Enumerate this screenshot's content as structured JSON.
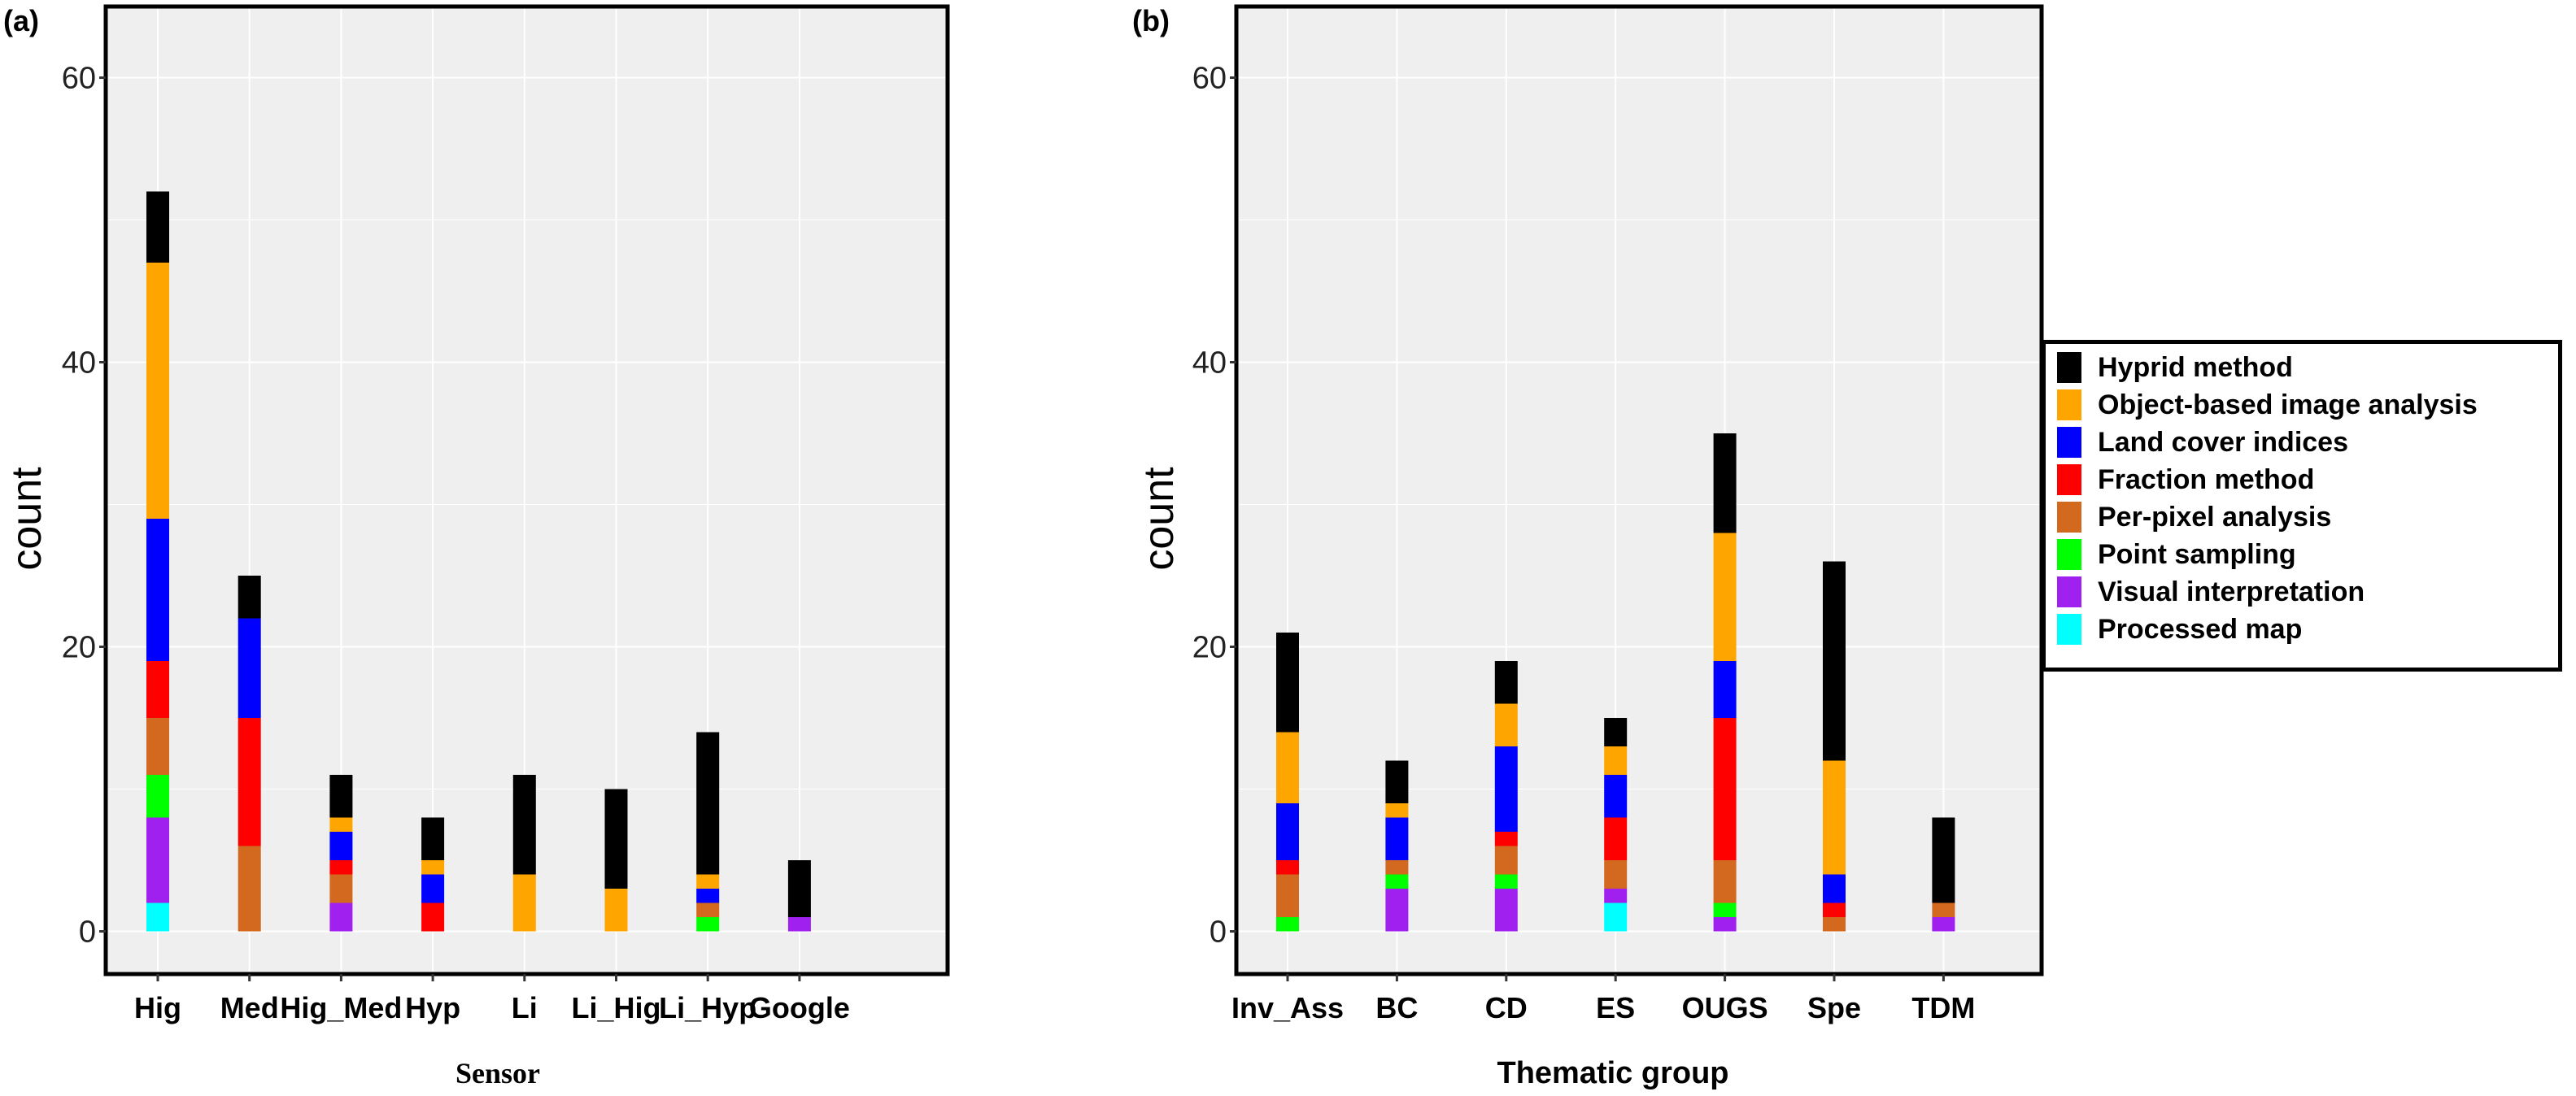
{
  "colors": {
    "Hyprid method": "#000000",
    "Object-based image analysis": "#FFA500",
    "Land cover indices": "#0000FF",
    "Fraction method": "#FF0000",
    "Per-pixel analysis": "#D2691E",
    "Point sampling": "#00FF00",
    "Visual interpretation": "#A020F0",
    "Processed map": "#00FFFF"
  },
  "legend": {
    "position": "right",
    "items": [
      "Hyprid method",
      "Object-based image analysis",
      "Land cover indices",
      "Fraction method",
      "Per-pixel analysis",
      "Point sampling",
      "Visual interpretation",
      "Processed map"
    ]
  },
  "chart_data": [
    {
      "panel_label": "(a)",
      "type": "bar",
      "stacked": true,
      "xlabel": "Sensor",
      "ylabel": "count",
      "ylim": [
        -3,
        65
      ],
      "yticks": [
        0,
        20,
        40,
        60
      ],
      "grid": true,
      "categories": [
        "Hig",
        "Med",
        "Hig_Med",
        "Hyp",
        "Li",
        "Li_Hig",
        "Li_Hyp",
        "Google"
      ],
      "series": [
        {
          "name": "Processed map",
          "values": [
            2,
            0,
            0,
            0,
            0,
            0,
            0,
            0
          ]
        },
        {
          "name": "Visual interpretation",
          "values": [
            6,
            0,
            2,
            0,
            0,
            0,
            0,
            1
          ]
        },
        {
          "name": "Point sampling",
          "values": [
            3,
            0,
            0,
            0,
            0,
            0,
            1,
            0
          ]
        },
        {
          "name": "Per-pixel analysis",
          "values": [
            4,
            6,
            2,
            0,
            0,
            0,
            1,
            0
          ]
        },
        {
          "name": "Fraction method",
          "values": [
            4,
            9,
            1,
            2,
            0,
            0,
            0,
            0
          ]
        },
        {
          "name": "Land cover indices",
          "values": [
            10,
            7,
            2,
            2,
            0,
            0,
            1,
            0
          ]
        },
        {
          "name": "Object-based image analysis",
          "values": [
            18,
            0,
            1,
            1,
            4,
            3,
            1,
            0
          ]
        },
        {
          "name": "Hyprid method",
          "values": [
            5,
            3,
            3,
            3,
            7,
            7,
            10,
            4
          ]
        }
      ]
    },
    {
      "panel_label": "(b)",
      "type": "bar",
      "stacked": true,
      "xlabel": "Thematic group",
      "ylabel": "count",
      "ylim": [
        -3,
        65
      ],
      "yticks": [
        0,
        20,
        40,
        60
      ],
      "grid": true,
      "categories": [
        "Inv_Ass",
        "BC",
        "CD",
        "ES",
        "OUGS",
        "Spe",
        "TDM"
      ],
      "series": [
        {
          "name": "Processed map",
          "values": [
            0,
            0,
            0,
            2,
            0,
            0,
            0
          ]
        },
        {
          "name": "Visual interpretation",
          "values": [
            0,
            3,
            3,
            1,
            1,
            0,
            1
          ]
        },
        {
          "name": "Point sampling",
          "values": [
            1,
            1,
            1,
            0,
            1,
            0,
            0
          ]
        },
        {
          "name": "Per-pixel analysis",
          "values": [
            3,
            1,
            2,
            2,
            3,
            1,
            1
          ]
        },
        {
          "name": "Fraction method",
          "values": [
            1,
            0,
            1,
            3,
            10,
            1,
            0
          ]
        },
        {
          "name": "Land cover indices",
          "values": [
            4,
            3,
            6,
            3,
            4,
            2,
            0
          ]
        },
        {
          "name": "Object-based image analysis",
          "values": [
            5,
            1,
            3,
            2,
            9,
            8,
            0
          ]
        },
        {
          "name": "Hyprid method",
          "values": [
            7,
            3,
            3,
            2,
            7,
            14,
            6
          ]
        }
      ]
    }
  ]
}
